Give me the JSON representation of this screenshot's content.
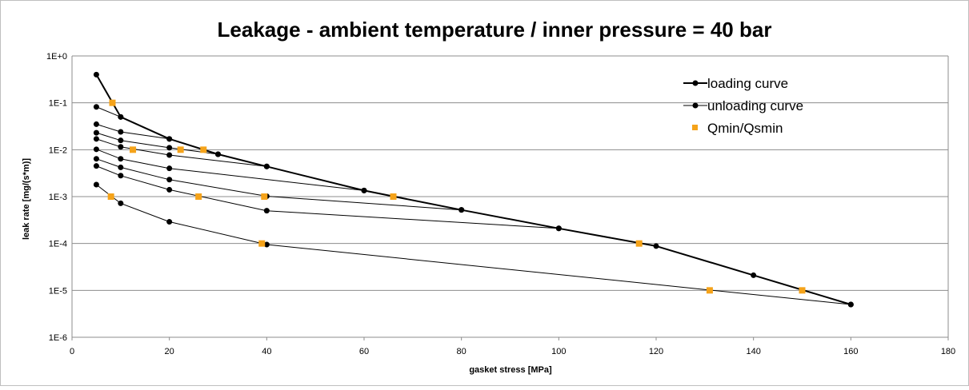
{
  "chart_data": {
    "type": "scatter",
    "title": "Leakage - ambient temperature / inner pressure = 40 bar",
    "xlabel": "gasket stress [MPa]",
    "ylabel": "leak rate [mg/(s*m)]",
    "xlim": [
      0,
      180
    ],
    "ylim": [
      1e-06,
      1
    ],
    "y_scale": "log",
    "x_ticks": [
      0,
      20,
      40,
      60,
      80,
      100,
      120,
      140,
      160,
      180
    ],
    "x_tick_labels": [
      "0",
      "20",
      "40",
      "60",
      "80",
      "100",
      "120",
      "140",
      "160",
      "180"
    ],
    "y_ticks": [
      1,
      0.1,
      0.01,
      0.001,
      0.0001,
      1e-05,
      1e-06
    ],
    "y_tick_labels": [
      "1E+0",
      "1E-1",
      "1E-2",
      "1E-3",
      "1E-4",
      "1E-5",
      "1E-6"
    ],
    "grid": "horizontal",
    "legend_position": "top-right",
    "colors": {
      "line": "#000000",
      "marker_q": "#f5a31a",
      "grid": "#8c8c8c"
    },
    "loading": {
      "name": "loading curve",
      "points": [
        [
          5,
          0.4
        ],
        [
          10,
          0.05
        ],
        [
          20,
          0.017
        ],
        [
          30,
          0.008
        ],
        [
          40,
          0.0044
        ],
        [
          60,
          0.00135
        ],
        [
          80,
          0.00052
        ],
        [
          100,
          0.00021
        ],
        [
          120,
          8.8e-05
        ],
        [
          140,
          2.1e-05
        ],
        [
          160,
          5e-06
        ]
      ]
    },
    "unloading": [
      {
        "name": "unloading curve",
        "points": [
          [
            5,
            0.082
          ],
          [
            10,
            0.05
          ]
        ]
      },
      {
        "points": [
          [
            5,
            0.035
          ],
          [
            10,
            0.024
          ],
          [
            20,
            0.017
          ]
        ]
      },
      {
        "points": [
          [
            5,
            0.023
          ],
          [
            10,
            0.0158
          ],
          [
            20,
            0.011
          ],
          [
            30,
            0.008
          ]
        ]
      },
      {
        "points": [
          [
            5,
            0.017
          ],
          [
            10,
            0.0115
          ],
          [
            20,
            0.0077
          ],
          [
            40,
            0.0044
          ]
        ]
      },
      {
        "points": [
          [
            5,
            0.0102
          ],
          [
            10,
            0.0064
          ],
          [
            20,
            0.004
          ],
          [
            60,
            0.00135
          ]
        ]
      },
      {
        "points": [
          [
            5,
            0.0064
          ],
          [
            10,
            0.0042
          ],
          [
            20,
            0.0023
          ],
          [
            40,
            0.00102
          ],
          [
            80,
            0.00052
          ]
        ]
      },
      {
        "points": [
          [
            5,
            0.0045
          ],
          [
            10,
            0.0028
          ],
          [
            20,
            0.0014
          ],
          [
            40,
            0.0005
          ],
          [
            100,
            0.00021
          ]
        ]
      },
      {
        "points": [
          [
            5,
            0.0018
          ],
          [
            10,
            0.00072
          ],
          [
            20,
            0.00029
          ],
          [
            40,
            9.5e-05
          ],
          [
            160,
            5e-06
          ]
        ]
      }
    ],
    "qmin": {
      "name": "Qmin/Qsmin",
      "points": [
        [
          8.3,
          0.1
        ],
        [
          12.5,
          0.01
        ],
        [
          22.3,
          0.01
        ],
        [
          27,
          0.01
        ],
        [
          8,
          0.001
        ],
        [
          26,
          0.001
        ],
        [
          39.5,
          0.001
        ],
        [
          66,
          0.001
        ],
        [
          39,
          0.0001
        ],
        [
          116.5,
          0.0001
        ],
        [
          131,
          1e-05
        ],
        [
          150,
          1e-05
        ]
      ]
    },
    "legend": {
      "loading": "loading curve",
      "unloading": "unloading curve",
      "qmin": "Qmin/Qsmin"
    }
  }
}
